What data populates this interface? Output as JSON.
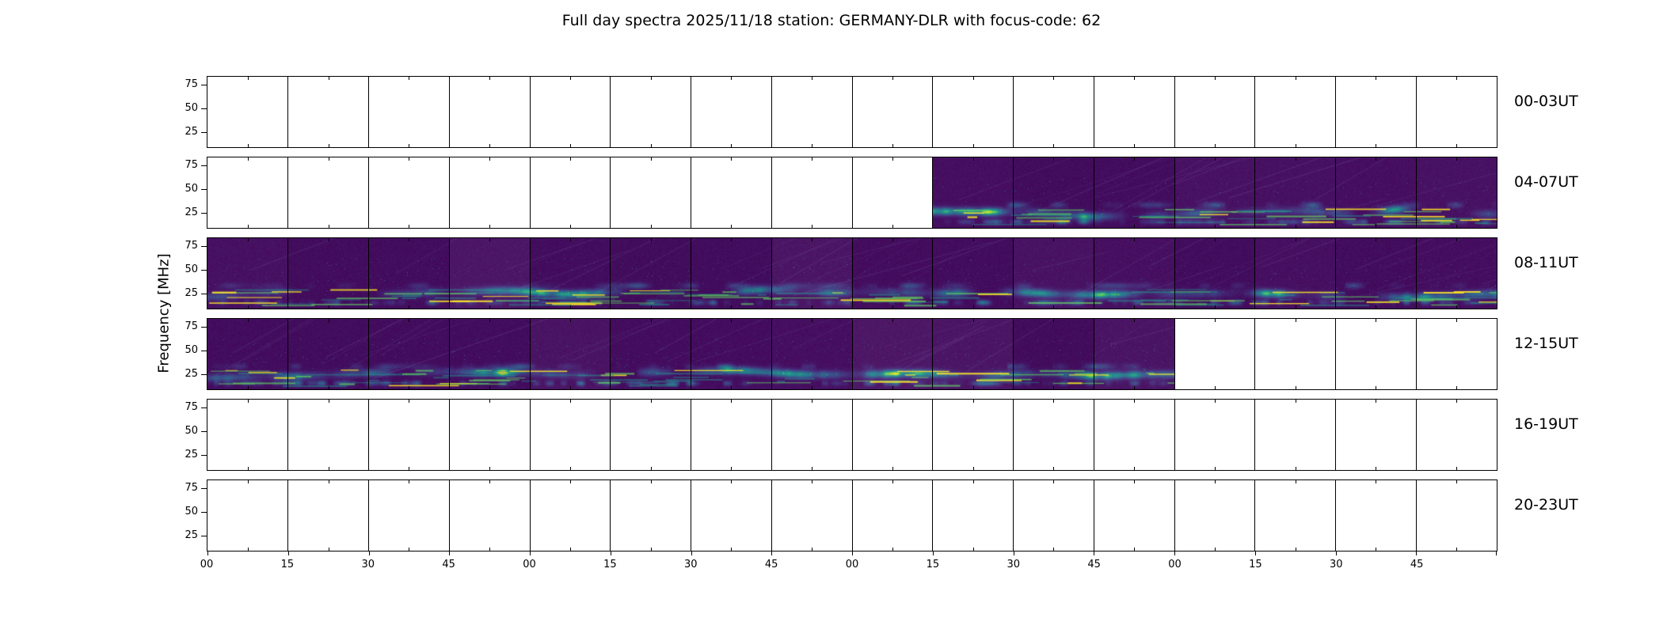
{
  "title": "Full day spectra 2025/11/18 station: GERMANY-DLR with focus-code: 62",
  "chart_data": {
    "type": "heatmap",
    "title": "Full day spectra 2025/11/18 station: GERMANY-DLR with focus-code: 62",
    "ylabel": "Frequency [MHz]",
    "colormap": "viridis",
    "y_ticks": [
      "75",
      "50",
      "25"
    ],
    "x_tick_labels": [
      "00",
      "15",
      "30",
      "45",
      "00",
      "15",
      "30",
      "45",
      "00",
      "15",
      "30",
      "45",
      "00",
      "15",
      "30",
      "45"
    ],
    "minutes_per_segment": 15,
    "segments_per_row": 16,
    "hours_per_row": 4,
    "rows": [
      {
        "label": "00-03UT",
        "has_data": false,
        "filled_segments": {
          "start": 0,
          "end": 0
        }
      },
      {
        "label": "04-07UT",
        "has_data": true,
        "filled_segments": {
          "start": 9,
          "end": 16
        },
        "data_time_range": "06:15-08:00 UT"
      },
      {
        "label": "08-11UT",
        "has_data": true,
        "filled_segments": {
          "start": 0,
          "end": 16
        },
        "data_time_range": "08:00-12:00 UT"
      },
      {
        "label": "12-15UT",
        "has_data": true,
        "filled_segments": {
          "start": 0,
          "end": 12
        },
        "data_time_range": "12:00-15:00 UT"
      },
      {
        "label": "16-19UT",
        "has_data": false,
        "filled_segments": {
          "start": 0,
          "end": 0
        }
      },
      {
        "label": "20-23UT",
        "has_data": false,
        "filled_segments": {
          "start": 0,
          "end": 0
        }
      }
    ],
    "colors": {
      "figure_background": "#ffffff",
      "axes_line": "#000000",
      "spectrogram_low": "#440154",
      "spectrogram_mid": "#21918c",
      "spectrogram_high": "#5ec962",
      "spectrogram_peak": "#fde725"
    }
  }
}
